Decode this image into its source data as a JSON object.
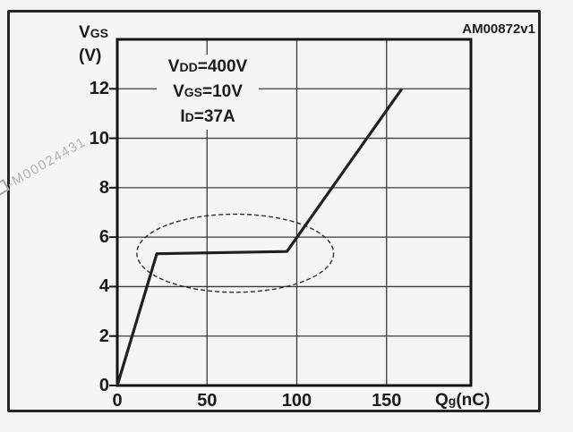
{
  "page": {
    "background": "#f5f5f1",
    "border_color": "#262626"
  },
  "stamp": {
    "text": "AM00872v1"
  },
  "watermark": {
    "text": "-M00024431",
    "color": "#b2b2b2"
  },
  "y_axis_title": {
    "main": "V",
    "sub": "GS",
    "unit": "(V)"
  },
  "x_axis_title": {
    "main": "Q",
    "sub": "g",
    "unit": "(nC)"
  },
  "conditions": [
    {
      "main": "V",
      "sub": "DD",
      "value": "=400V"
    },
    {
      "main": "V",
      "sub": "GS",
      "value": "=10V"
    },
    {
      "main": "I",
      "sub": "D",
      "value": "=37A"
    }
  ],
  "chart_data": {
    "type": "line",
    "title": "",
    "xlabel": "Qg (nC)",
    "ylabel": "VGS (V)",
    "xlim": [
      0,
      197
    ],
    "ylim": [
      0,
      14
    ],
    "x_ticks": [
      0,
      50,
      100,
      150
    ],
    "y_ticks": [
      0,
      2,
      4,
      6,
      8,
      10,
      12
    ],
    "grid": true,
    "legend": "none",
    "series": [
      {
        "name": "gate-charge-curve",
        "points": [
          [
            0,
            0
          ],
          [
            22,
            5.33
          ],
          [
            94.5,
            5.42
          ],
          [
            158.5,
            12.0
          ]
        ]
      }
    ],
    "annotations": {
      "plateau_ellipse": {
        "cx": 65.7,
        "cy": 5.35,
        "rx": 54.8,
        "ry": 1.58,
        "style": "dashed"
      },
      "conditions_text": [
        "VDD=400V",
        "VGS=10V",
        "ID=37A"
      ]
    },
    "line_color": "#202020",
    "grid_color": "#3a3a3a",
    "frame_color": "#141414"
  }
}
